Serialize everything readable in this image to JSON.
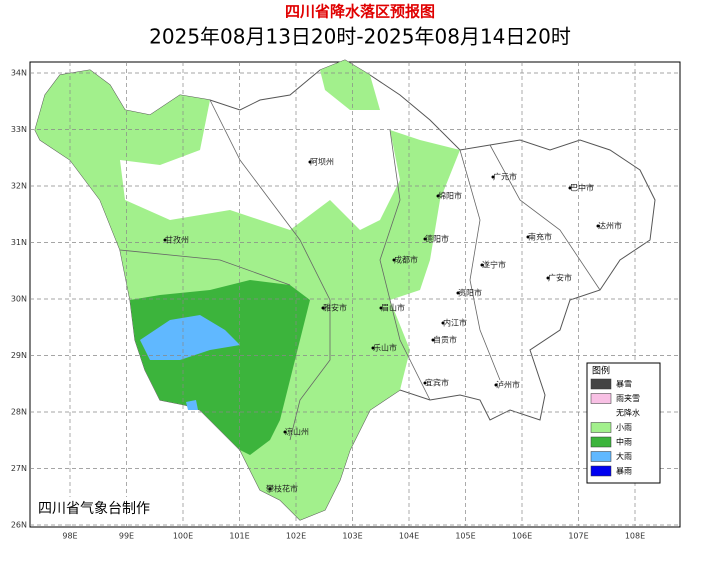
{
  "header": {
    "title": "四川省降水落区预报图",
    "subtitle": "2025年08月13日20时-2025年08月14日20时"
  },
  "lat_labels": [
    "34N",
    "33N",
    "32N",
    "31N",
    "30N",
    "29N",
    "28N",
    "27N",
    "26N"
  ],
  "lon_labels": [
    "98E",
    "99E",
    "100E",
    "101E",
    "102E",
    "103E",
    "104E",
    "105E",
    "106E",
    "107E",
    "108E"
  ],
  "cities": [
    "阿坝州",
    "甘孜州",
    "绵阳市",
    "广元市",
    "巴中市",
    "达州市",
    "南充市",
    "德阳市",
    "成都市",
    "遂宁市",
    "广安市",
    "资阳市",
    "雅安市",
    "眉山市",
    "内江市",
    "乐山市",
    "自贡市",
    "宜宾市",
    "泸州市",
    "凉山州",
    "攀枝花市"
  ],
  "legend": {
    "title": "图例",
    "items": [
      {
        "label": "暴雪",
        "color": "#444444"
      },
      {
        "label": "雨夹雪",
        "color": "#f8c0e4"
      },
      {
        "label": "无降水",
        "color": "#ffffff"
      },
      {
        "label": "小雨",
        "color": "#a2f08c"
      },
      {
        "label": "中雨",
        "color": "#3cb43c"
      },
      {
        "label": "大雨",
        "color": "#60b8ff"
      },
      {
        "label": "暴雨",
        "color": "#0000f0"
      }
    ]
  },
  "footer": "四川省气象台制作"
}
